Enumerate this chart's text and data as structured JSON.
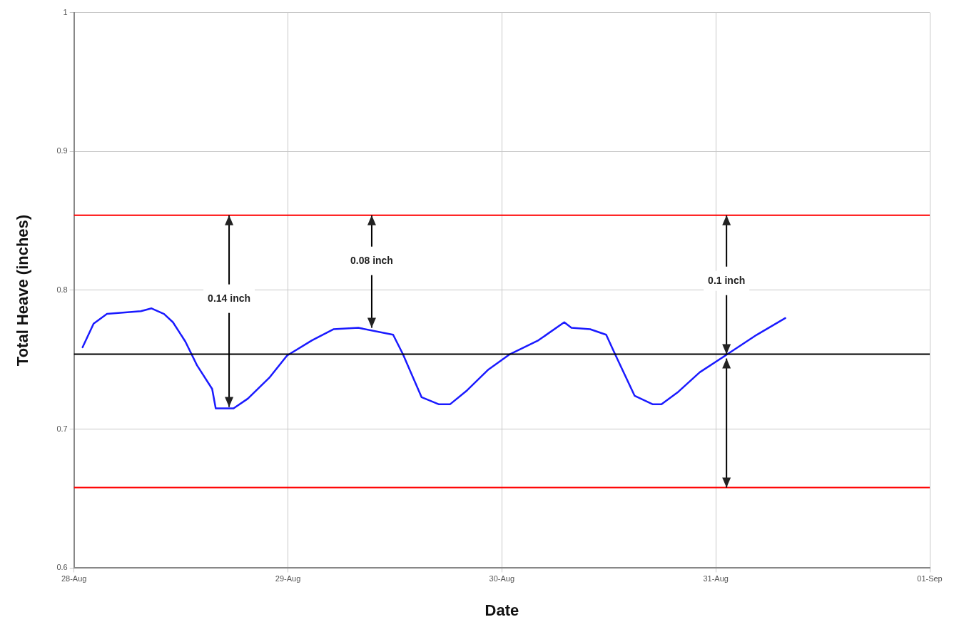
{
  "chart_data": {
    "type": "line",
    "xlabel": "Date",
    "ylabel": "Total Heave (inches)",
    "x": [
      "--08-28T00:58",
      "--08-28T02:12",
      "--08-28T03:42",
      "--08-28T07:30",
      "--08-28T08:42",
      "--08-28T10:06",
      "--08-28T11:06",
      "--08-28T12:30",
      "--08-28T13:48",
      "--08-28T15:30",
      "--08-28T15:54",
      "--08-28T17:54",
      "--08-28T19:30",
      "--08-28T21:54",
      "--08-28T23:54",
      "--08-29T02:42",
      "--08-29T05:06",
      "--08-29T07:54",
      "--08-29T11:48",
      "--08-29T12:54",
      "--08-29T15:00",
      "--08-29T16:54",
      "--08-29T18:12",
      "--08-29T20:06",
      "--08-29T22:30",
      "--08-30T00:54",
      "--08-30T04:06",
      "--08-30T07:00",
      "--08-30T07:48",
      "--08-30T09:54",
      "--08-30T11:42",
      "--08-30T12:42",
      "--08-30T14:54",
      "--08-30T16:54",
      "--08-30T17:54",
      "--08-30T19:48",
      "--08-30T22:12",
      "--08-31T01:18",
      "--08-31T04:36",
      "--08-31T07:48"
    ],
    "series": [
      {
        "color": "#1a1aff",
        "values": [
          0.759,
          0.776,
          0.783,
          0.785,
          0.787,
          0.783,
          0.777,
          0.763,
          0.746,
          0.729,
          0.715,
          0.715,
          0.722,
          0.737,
          0.753,
          0.764,
          0.772,
          0.773,
          0.768,
          0.754,
          0.723,
          0.718,
          0.718,
          0.728,
          0.743,
          0.754,
          0.764,
          0.777,
          0.773,
          0.772,
          0.768,
          0.754,
          0.724,
          0.718,
          0.718,
          0.727,
          0.741,
          0.754,
          0.768,
          0.78
        ]
      }
    ],
    "xlim": [
      "--08-28",
      "--09-01"
    ],
    "xticks": [
      {
        "value": "--08-28",
        "label": "28-Aug"
      },
      {
        "value": "--08-29",
        "label": "29-Aug"
      },
      {
        "value": "--08-30",
        "label": "30-Aug"
      },
      {
        "value": "--08-31",
        "label": "31-Aug"
      },
      {
        "value": "--09-01",
        "label": "01-Sep"
      }
    ],
    "ylim": [
      0.6,
      1
    ],
    "yticks": [
      0.6,
      0.7,
      0.8,
      0.9,
      1
    ],
    "ref_lines": [
      {
        "axis": "y",
        "value": 0.854,
        "color": "#ff0000"
      },
      {
        "axis": "y",
        "value": 0.754,
        "color": "#000000"
      },
      {
        "axis": "y",
        "value": 0.658,
        "color": "#ff0000"
      }
    ],
    "annotations": [
      {
        "text": "0.14 inch",
        "x": "--08-28T17:24",
        "y": 0.715
      },
      {
        "text": "0.08 inch",
        "x": "--08-29T09:24",
        "y": 0.772
      },
      {
        "text": "0.1 inch",
        "x": "--08-31T01:12",
        "y": 0.754
      }
    ],
    "grid": true,
    "legend": false,
    "marker": "none",
    "line_style": "solid"
  }
}
